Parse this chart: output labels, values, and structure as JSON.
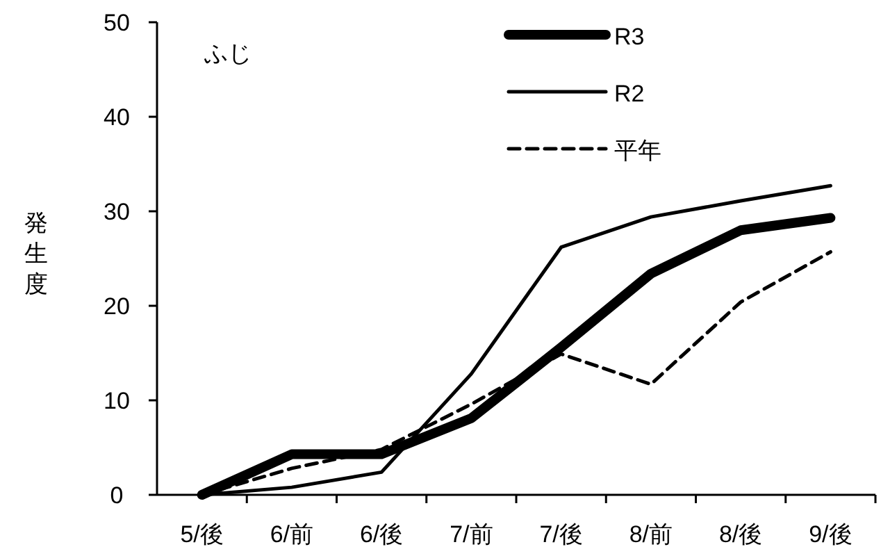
{
  "chart_data": {
    "type": "line",
    "ylabel": "発生度",
    "annotations": [
      "ふじ"
    ],
    "categories": [
      "5/後",
      "6/前",
      "6/後",
      "7/前",
      "7/後",
      "8/前",
      "8/後",
      "9/後"
    ],
    "ylim": [
      0,
      50
    ],
    "yticks": [
      0,
      10,
      20,
      30,
      40,
      50
    ],
    "legend": "top",
    "marker": "none",
    "series": [
      {
        "name": "R3",
        "color": "#000000",
        "line_style": "solid",
        "values": [
          0,
          4.3,
          4.3,
          8.1,
          15.6,
          23.4,
          28.0,
          29.3
        ]
      },
      {
        "name": "R2",
        "color": "#000000",
        "line_style": "solid",
        "values": [
          0,
          0.8,
          2.4,
          12.8,
          26.2,
          29.4,
          31.1,
          32.7
        ]
      },
      {
        "name": "平年",
        "color": "#000000",
        "line_style": "dashed",
        "values": [
          0,
          2.8,
          4.8,
          9.6,
          14.9,
          11.7,
          20.4,
          25.7
        ]
      }
    ]
  }
}
